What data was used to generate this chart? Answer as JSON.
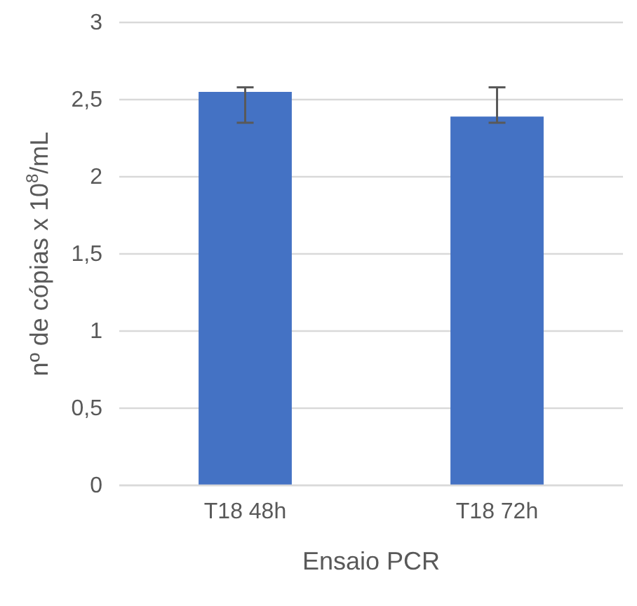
{
  "chart_data": {
    "type": "bar",
    "xlabel": "Ensaio PCR",
    "ylabel": "nº de cópias x 10$^{8}$/mL",
    "categories": [
      "T18 48h",
      "T18 72h"
    ],
    "values": [
      2.55,
      2.39
    ],
    "color": "#4472c4",
    "errors": [
      [
        2.35,
        2.58
      ],
      [
        2.35,
        2.58
      ]
    ],
    "ylim": [
      0,
      3
    ],
    "yticks": [
      {
        "value": 0,
        "label": "0"
      },
      {
        "value": 0.5,
        "label": "0,5"
      },
      {
        "value": 1,
        "label": "1"
      },
      {
        "value": 1.5,
        "label": "1,5"
      },
      {
        "value": 2,
        "label": "2"
      },
      {
        "value": 2.5,
        "label": "2,5"
      },
      {
        "value": 3,
        "label": "3"
      }
    ],
    "grid": "y"
  }
}
